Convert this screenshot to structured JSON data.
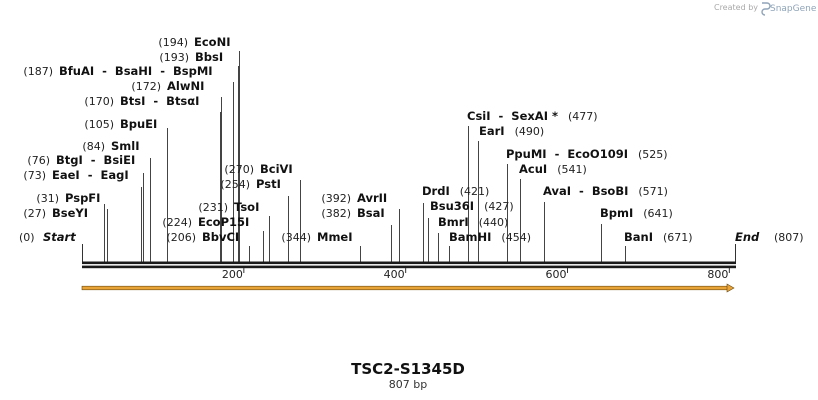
{
  "brand": {
    "created_by": "Created by",
    "app": "SnapGene"
  },
  "sequence": {
    "name": "TSC2-S1345D",
    "length_label": "807 bp",
    "length": 807
  },
  "axis": {
    "ticks": [
      200,
      400,
      600,
      800
    ]
  },
  "ends": {
    "start": "Start",
    "start_pos": "(0)",
    "end": "End",
    "end_pos": "(807)"
  },
  "features": [
    {
      "name": "orf-arrow",
      "start": 1,
      "end": 807,
      "color": "#e8a437"
    }
  ],
  "sites": [
    {
      "id": "bseyi",
      "pos": 27,
      "pos_label": "(27)",
      "name": "BseYI"
    },
    {
      "id": "pspfi",
      "pos": 31,
      "pos_label": "(31)",
      "name": "PspFI"
    },
    {
      "id": "eaei",
      "pos": 73,
      "pos_label": "(73)",
      "name": "EaeI  -  EagI"
    },
    {
      "id": "btgi",
      "pos": 76,
      "pos_label": "(76)",
      "name": "BtgI  -  BsiEI"
    },
    {
      "id": "smli",
      "pos": 84,
      "pos_label": "(84)",
      "name": "SmlI"
    },
    {
      "id": "bpuei",
      "pos": 105,
      "pos_label": "(105)",
      "name": "BpuEI"
    },
    {
      "id": "btsi",
      "pos": 170,
      "pos_label": "(170)",
      "name": "BtsI  -  BtsαI"
    },
    {
      "id": "alwni",
      "pos": 172,
      "pos_label": "(172)",
      "name": "AlwNI"
    },
    {
      "id": "bfuai",
      "pos": 187,
      "pos_label": "(187)",
      "name": "BfuAI  -  BsaHI  -  BspMI"
    },
    {
      "id": "bbsi",
      "pos": 193,
      "pos_label": "(193)",
      "name": "BbsI"
    },
    {
      "id": "econi",
      "pos": 194,
      "pos_label": "(194)",
      "name": "EcoNI"
    },
    {
      "id": "bbvci",
      "pos": 206,
      "pos_label": "(206)",
      "name": "BbvCI"
    },
    {
      "id": "ecop15i",
      "pos": 224,
      "pos_label": "(224)",
      "name": "EcoP15I"
    },
    {
      "id": "tsoi",
      "pos": 231,
      "pos_label": "(231)",
      "name": "TsoI"
    },
    {
      "id": "psti",
      "pos": 254,
      "pos_label": "(254)",
      "name": "PstI"
    },
    {
      "id": "bcivi",
      "pos": 270,
      "pos_label": "(270)",
      "name": "BciVI"
    },
    {
      "id": "mmei",
      "pos": 344,
      "pos_label": "(344)",
      "name": "MmeI"
    },
    {
      "id": "bsai",
      "pos": 382,
      "pos_label": "(382)",
      "name": "BsaI"
    },
    {
      "id": "avrii",
      "pos": 392,
      "pos_label": "(392)",
      "name": "AvrII"
    },
    {
      "id": "drdi",
      "pos": 421,
      "pos_label": "(421)",
      "name": "DrdI"
    },
    {
      "id": "bsu36i",
      "pos": 427,
      "pos_label": "(427)",
      "name": "Bsu36I"
    },
    {
      "id": "bmri",
      "pos": 440,
      "pos_label": "(440)",
      "name": "BmrI"
    },
    {
      "id": "bamhi",
      "pos": 454,
      "pos_label": "(454)",
      "name": "BamHI"
    },
    {
      "id": "csii",
      "pos": 477,
      "pos_label": "(477)",
      "name": "CsiI  -  SexAI *"
    },
    {
      "id": "eari",
      "pos": 490,
      "pos_label": "(490)",
      "name": "EarI"
    },
    {
      "id": "ppumi",
      "pos": 525,
      "pos_label": "(525)",
      "name": "PpuMI  -  EcoO109I"
    },
    {
      "id": "acui",
      "pos": 541,
      "pos_label": "(541)",
      "name": "AcuI"
    },
    {
      "id": "avai",
      "pos": 571,
      "pos_label": "(571)",
      "name": "AvaI  -  BsoBI"
    },
    {
      "id": "bpmi",
      "pos": 641,
      "pos_label": "(641)",
      "name": "BpmI"
    },
    {
      "id": "bani",
      "pos": 671,
      "pos_label": "(671)",
      "name": "BanI"
    }
  ]
}
